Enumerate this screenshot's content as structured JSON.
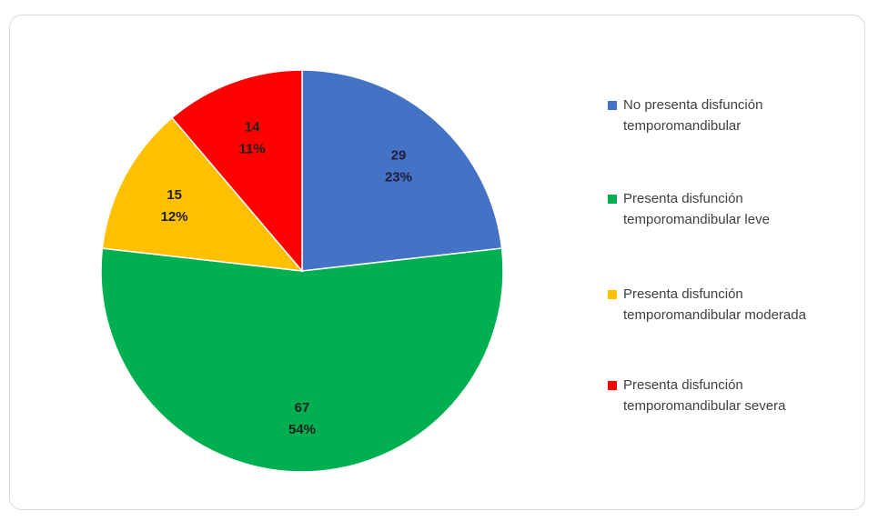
{
  "chart_data": {
    "type": "pie",
    "title": "",
    "legend_position": "right",
    "slices": [
      {
        "name": "No presenta disfunción temporomandibular",
        "value": 29,
        "percent": "23%",
        "color": "#4472C4",
        "label_color": "#1F1F3A"
      },
      {
        "name": "Presenta disfunción temporomandibular leve",
        "value": 67,
        "percent": "54%",
        "color": "#00B050",
        "label_color": "#1F1F1F"
      },
      {
        "name": "Presenta disfunción temporomandibular moderada",
        "value": 15,
        "percent": "12%",
        "color": "#FFC000",
        "label_color": "#1F1F1F"
      },
      {
        "name": "Presenta disfunción temporomandibular severa",
        "value": 14,
        "percent": "11%",
        "color": "#FF0000",
        "label_color": "#1F1F1F"
      }
    ]
  }
}
